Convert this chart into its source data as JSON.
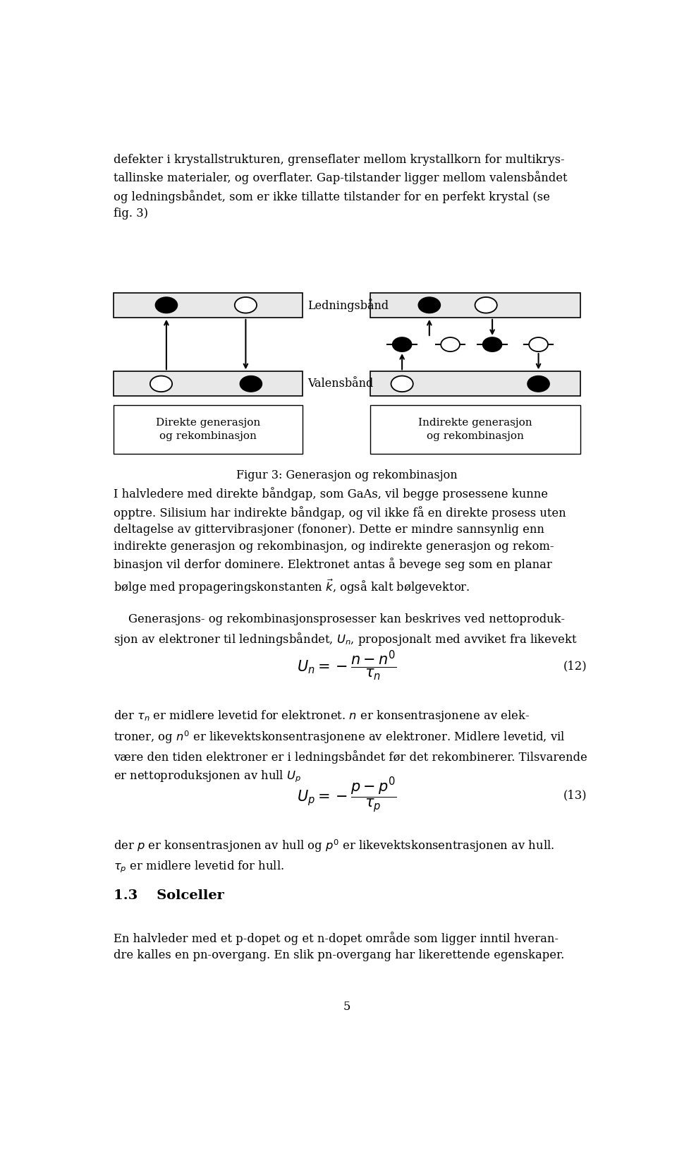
{
  "page_width": 9.6,
  "page_height": 16.28,
  "bg_color": "#ffffff",
  "text_color": "#000000",
  "band_fill": "#e8e8e8",
  "band_edge": "#000000",
  "top_text": "defekter i krystallstrukturen, grenseflater mellom krystallkorn for multikrys-\ntallinske materialer, og overflater. Gap-tilstander ligger mellom valensbåndet\nog ledningsbåndet, som er ikke tillatte tilstander for en perfekt krystal (se\nfig. 3)",
  "caption": "Figur 3: Generasjon og rekombinasjon",
  "label_ledning": "Ledningsbånd",
  "label_valens": "Valensbånd",
  "label_direkte": "Direkte generasjon\nog rekombinasjon",
  "label_indirekte": "Indirekte generasjon\nog rekombinasjon",
  "body_text1": "I halvledere med direkte båndgap, som GaAs, vil begge prosessene kunne\nopptre. Silisium har indirekte båndgap, og vil ikke få en direkte prosess uten\ndeltagelse av gittervibrasjoner (fononer). Dette er mindre sannsynlig enn\nindirekte generasjon og rekombinasjon, og indirekte generasjon og rekom-\nbinasjon vil derfor dominere. Elektronet antas å bevege seg som en planar\nbølge med propageringskonstanten $\\vec{k}$, også kalt bølgevektor.",
  "body_text2": "    Generasjons- og rekombinasjonsprosesser kan beskrives ved nettoproduk-\nsjon av elektroner til ledningsbåndet, $U_n$, proposjonalt med avviket fra likevekt",
  "eq1_num": "(12)",
  "body_text3": "der $\\tau_n$ er midlere levetid for elektronet. $n$ er konsentrasjonene av elek-\ntroner, og $n^0$ er likevektskonsentrasjonene av elektroner. Midlere levetid, vil\nvære den tiden elektroner er i ledningsbåndet før det rekombinerer. Tilsvarende\ner nettoproduksjonen av hull $U_p$",
  "eq2_num": "(13)",
  "body_text4": "der $p$ er konsentrasjonen av hull og $p^0$ er likevektskonsentrasjonen av hull.\n$\\tau_p$ er midlere levetid for hull.",
  "section_header": "1.3    Solceller",
  "body_text5": "En halvleder med et p-dopet og et n-dopet område som ligger inntil hveran-\ndre kalles en pn-overgang. En slik pn-overgang har likerettende egenskaper.",
  "page_num": "5"
}
